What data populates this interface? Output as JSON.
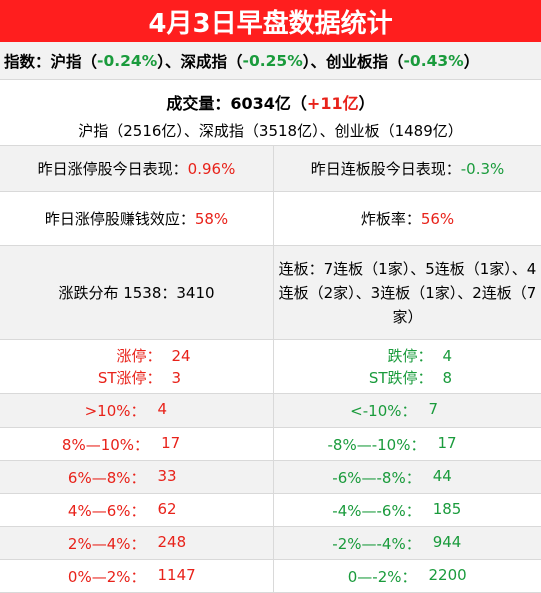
{
  "title": "4月3日早盘数据统计",
  "indices": {
    "label": "指数：",
    "sh_name": "沪指（",
    "sh_value": "-0.24%",
    "sz_name": "）、深成指（",
    "sz_value": "-0.25%",
    "cy_name": "）、创业板指（",
    "cy_value": "-0.43%",
    "tail": "）"
  },
  "volume": {
    "label": "成交量：6034亿（",
    "change": "+11亿",
    "label_tail": "）",
    "breakdown": "沪指（2516亿）、深成指（3518亿）、创业板（1489亿）"
  },
  "yesterday": {
    "limit_up_perf_label": "昨日涨停股今日表现：",
    "limit_up_perf_value": "0.96%",
    "consecutive_perf_label": "昨日连板股今日表现：",
    "consecutive_perf_value": "-0.3%",
    "limit_up_profit_label": "昨日涨停股赚钱效应：",
    "limit_up_profit_value": "58%",
    "broken_rate_label": "炸板率：",
    "broken_rate_value": "56%"
  },
  "distribution": {
    "label": "涨跌分布 1538：3410",
    "lianban": "连板：7连板（1家）、5连板（1家）、4连板（2家）、3连板（1家）、2连板（7家）"
  },
  "limits": {
    "up_label": "涨停：",
    "up_value": "24",
    "st_up_label": "ST涨停：",
    "st_up_value": "3",
    "down_label": "跌停：",
    "down_value": "4",
    "st_down_label": "ST跌停：",
    "st_down_value": "8"
  },
  "ranges": [
    {
      "up_label": ">10%：",
      "up_value": "4",
      "down_label": "<-10%：",
      "down_value": "7"
    },
    {
      "up_label": "8%—10%：",
      "up_value": "17",
      "down_label": "-8%—-10%：",
      "down_value": "17"
    },
    {
      "up_label": "6%—8%：",
      "up_value": "33",
      "down_label": "-6%—-8%：",
      "down_value": "44"
    },
    {
      "up_label": "4%—6%：",
      "up_value": "62",
      "down_label": "-4%—-6%：",
      "down_value": "185"
    },
    {
      "up_label": "2%—4%：",
      "up_value": "248",
      "down_label": "-2%—-4%：",
      "down_value": "944"
    },
    {
      "up_label": "0%—2%：",
      "up_value": "1147",
      "down_label": "0—-2%：",
      "down_value": "2200"
    }
  ],
  "colors": {
    "title_bg": "#ff1e1e",
    "up": "#e8221a",
    "down": "#1a9b3c",
    "row_gray": "#f2f2f2"
  }
}
